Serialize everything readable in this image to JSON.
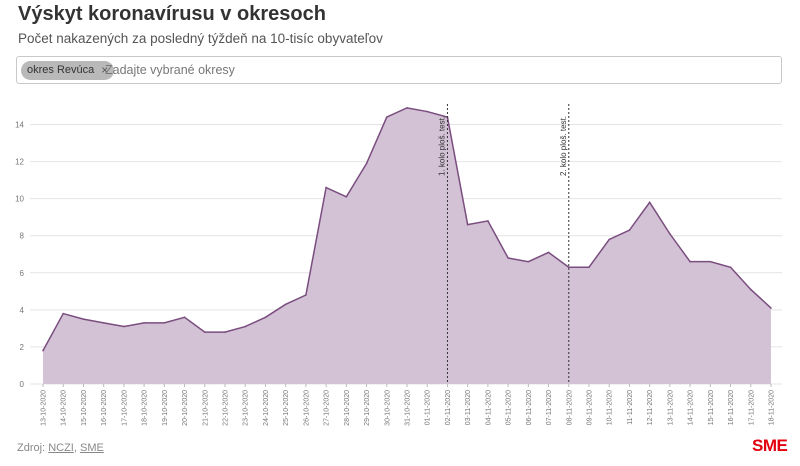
{
  "header": {
    "title": "Výskyt koronavírusu v okresoch",
    "subtitle": "Počet nakazených za posledný týždeň na 10-tisíc obyvateľov"
  },
  "selector": {
    "chip_label": "okres Revúca",
    "chip_remove": "×",
    "placeholder": "Zadajte vybrané okresy"
  },
  "footer": {
    "source_prefix": "Zdroj: ",
    "source_1": "NCZI",
    "source_sep": ", ",
    "source_2": "SME",
    "logo": "SME"
  },
  "colors": {
    "line": "#7a4d7f",
    "fill": "#d3c1d6",
    "grid": "#e4e4e4",
    "brand": "#e3000f"
  },
  "chart_data": {
    "type": "area",
    "x": [
      "13-10-2020",
      "14-10-2020",
      "15-10-2020",
      "16-10-2020",
      "17-10-2020",
      "18-10-2020",
      "19-10-2020",
      "20-10-2020",
      "21-10-2020",
      "22-10-2020",
      "23-10-2020",
      "24-10-2020",
      "25-10-2020",
      "26-10-2020",
      "27-10-2020",
      "28-10-2020",
      "29-10-2020",
      "30-10-2020",
      "31-10-2020",
      "01-11-2020",
      "02-11-2020",
      "03-11-2020",
      "04-11-2020",
      "05-11-2020",
      "06-11-2020",
      "07-11-2020",
      "08-11-2020",
      "09-11-2020",
      "10-11-2020",
      "11-11-2020",
      "12-11-2020",
      "13-11-2020",
      "14-11-2020",
      "15-11-2020",
      "16-11-2020",
      "17-11-2020",
      "18-11-2020"
    ],
    "values": [
      1.8,
      3.8,
      3.5,
      3.3,
      3.1,
      3.3,
      3.3,
      3.6,
      2.8,
      2.8,
      3.1,
      3.6,
      4.3,
      4.8,
      10.6,
      10.1,
      11.9,
      14.4,
      14.9,
      14.7,
      14.4,
      8.6,
      8.8,
      6.8,
      6.6,
      7.1,
      6.3,
      6.3,
      7.8,
      8.3,
      9.8,
      8.1,
      6.6,
      6.6,
      6.3,
      5.1,
      4.1
    ],
    "ylim": [
      0,
      15
    ],
    "yticks": [
      "0",
      "2",
      "4",
      "6",
      "8",
      "10",
      "12",
      "14"
    ],
    "grid": true,
    "annotations": [
      {
        "x": "02-11-2020",
        "label": "1. kolo ploš. test."
      },
      {
        "x": "08-11-2020",
        "label": "2. kolo ploš. test."
      }
    ]
  }
}
